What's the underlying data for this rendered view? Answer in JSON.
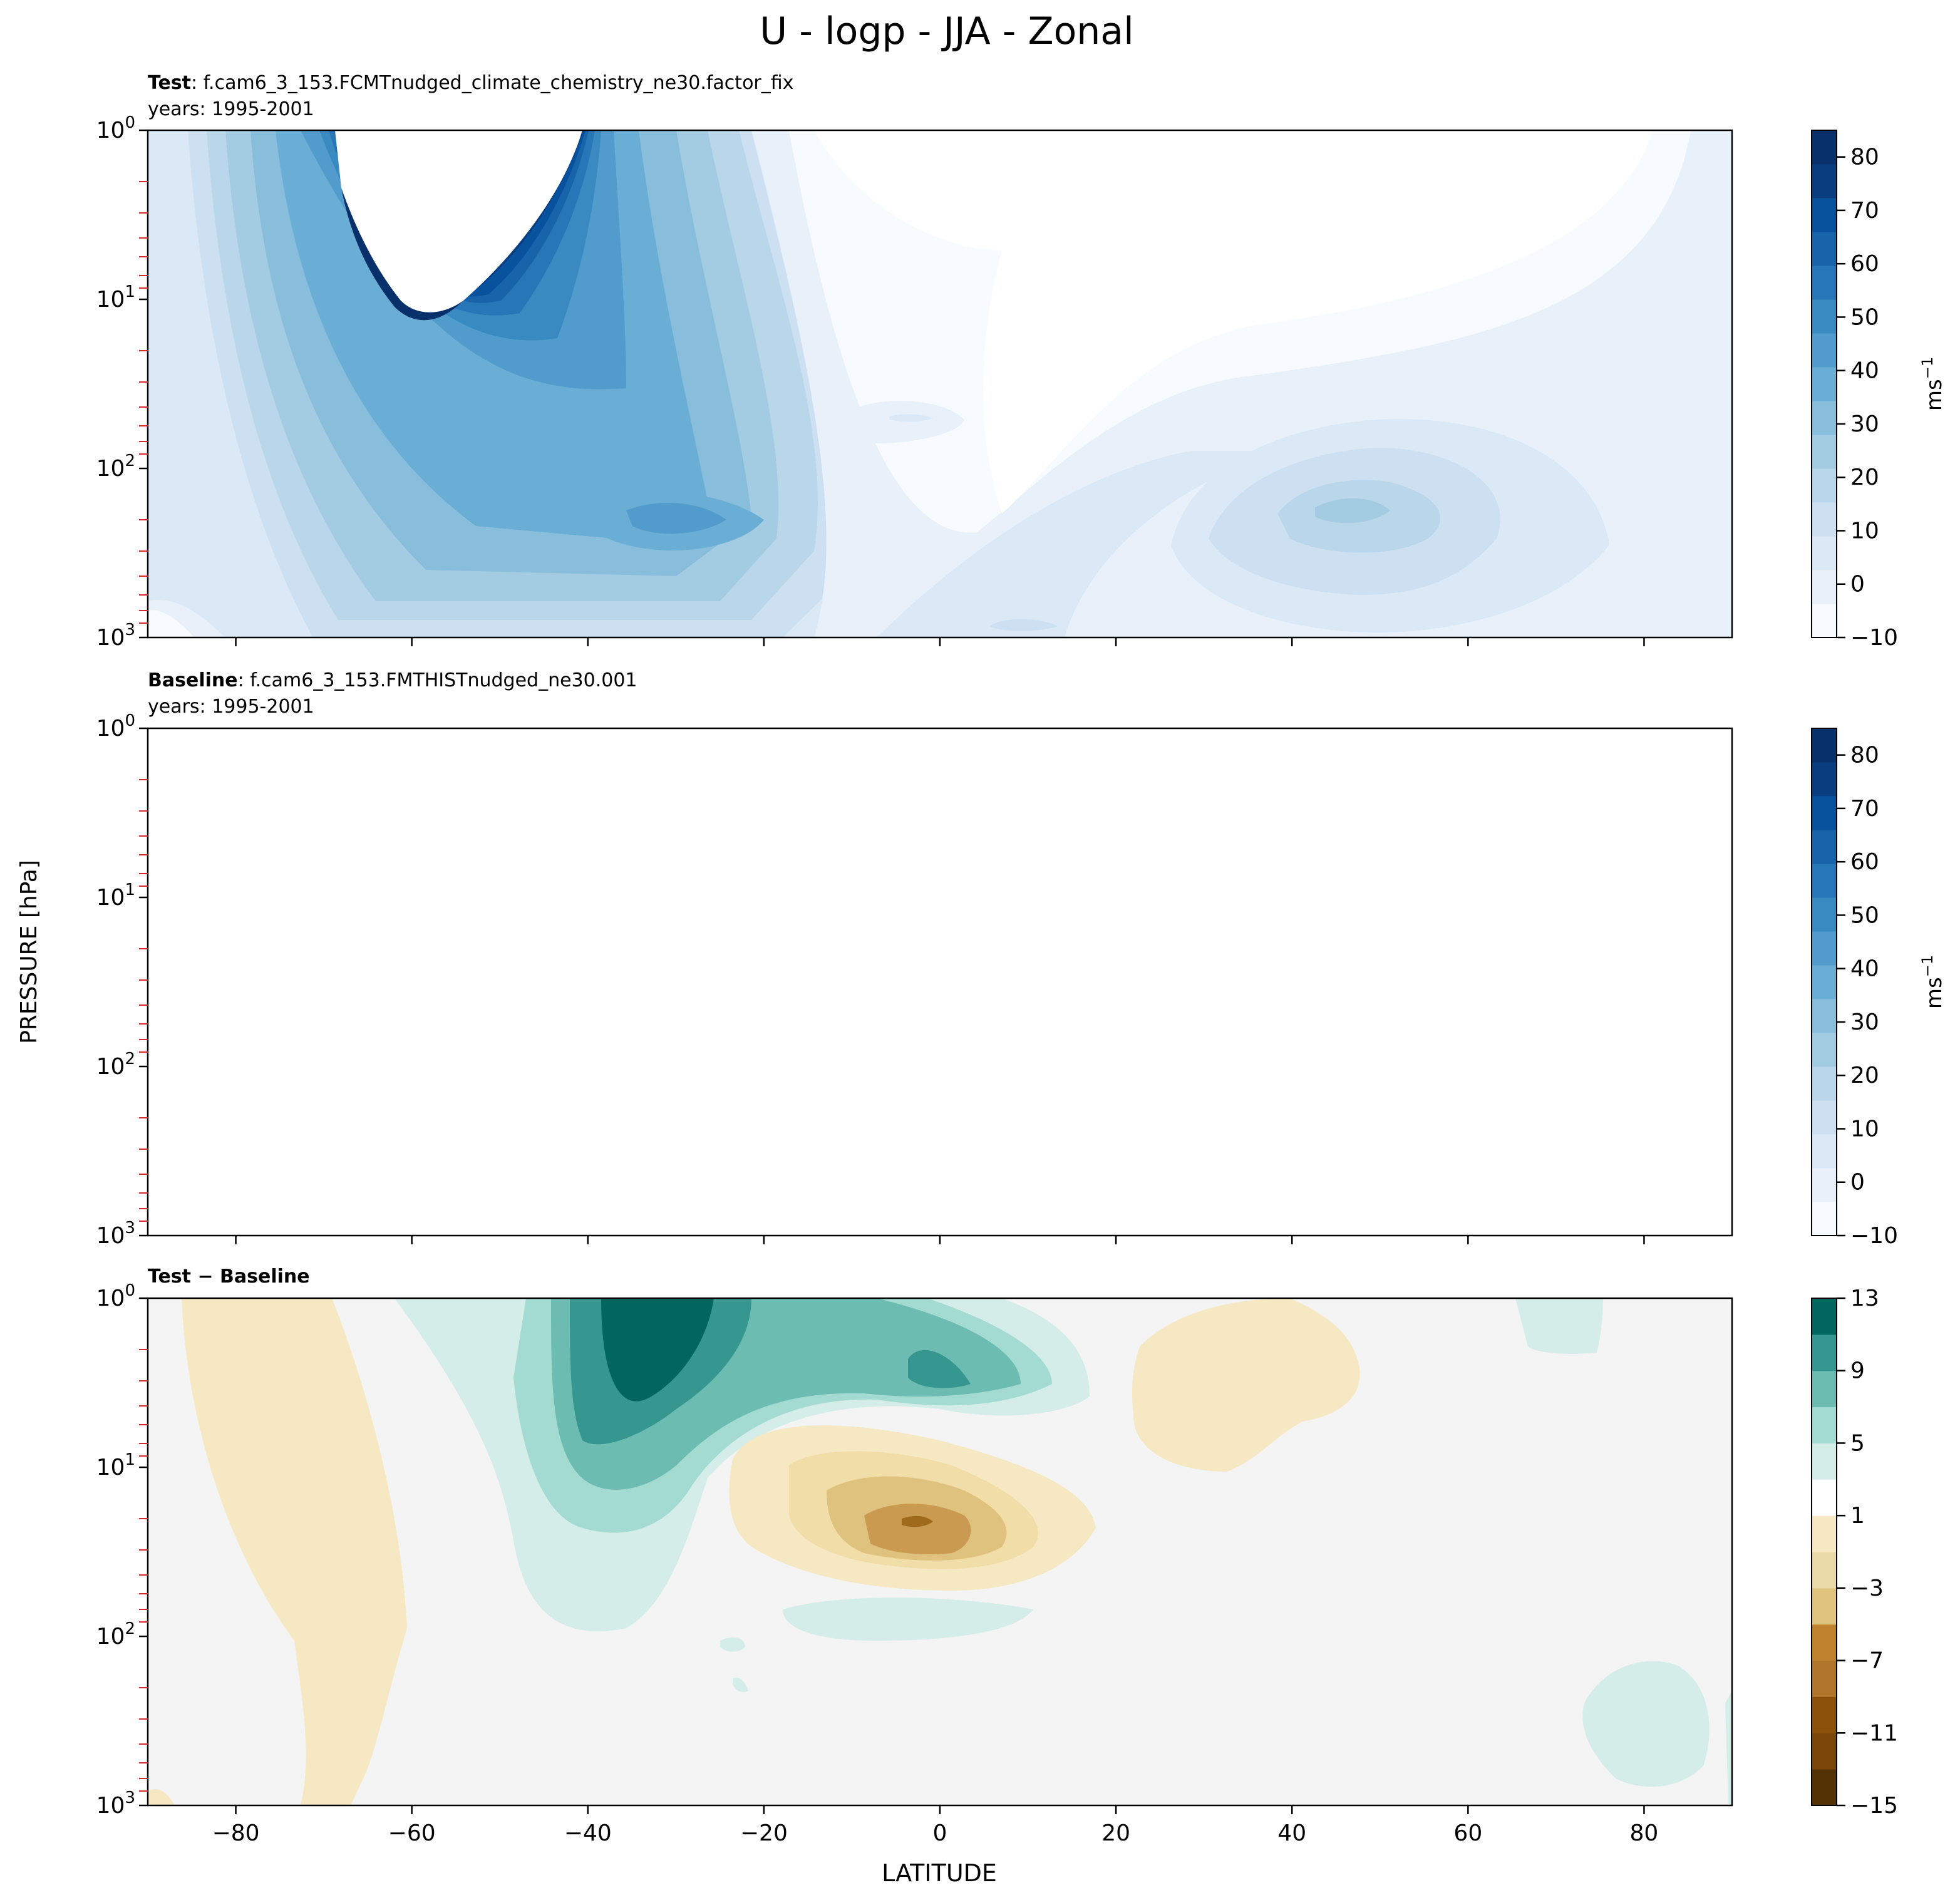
{
  "figure": {
    "title": "U - logp - JJA - Zonal",
    "ylabel": "PRESSURE [hPa]",
    "xlabel": "LATITUDE"
  },
  "colors": {
    "blues": [
      "#f7fbff",
      "#e8f1fa",
      "#dbe9f6",
      "#cde0f1",
      "#bad6eb",
      "#a3cce3",
      "#88bedc",
      "#6aaed6",
      "#519ccc",
      "#3a8ac2",
      "#2676b8",
      "#1764ab",
      "#08519c",
      "#083e80",
      "#08306b"
    ],
    "diff": [
      "#543005",
      "#8c510a",
      "#bf812d",
      "#dfc27d",
      "#f6e8c3",
      "#f5f5f5",
      "#c7eae5",
      "#80cdc1",
      "#35978f",
      "#01665e",
      "#003c30"
    ],
    "background_diff": "#f3f4f3",
    "minor_tick": "#d62728"
  },
  "chart_data": [
    {
      "type": "contourf",
      "id": "test",
      "label_bold": "Test",
      "label_rest": ": f.cam6_3_153.FCMTnudged_climate_chemistry_ne30.factor_fix",
      "years": "years: 1995-2001",
      "xlim": [
        -90,
        90
      ],
      "ylim_hpa": [
        1000,
        1
      ],
      "yscale": "log",
      "xticks": [
        -80,
        -60,
        -40,
        -20,
        0,
        20,
        40,
        60,
        80
      ],
      "yticks": [
        "10^3",
        "10^2",
        "10^1",
        "10^0"
      ],
      "colorbar": {
        "ticks": [
          "80",
          "70",
          "60",
          "50",
          "40",
          "30",
          "20",
          "10",
          "0",
          "−10"
        ],
        "tick_values": [
          80,
          70,
          60,
          50,
          40,
          30,
          20,
          10,
          0,
          -10
        ],
        "range": [
          -10,
          85
        ],
        "unit_base": "ms",
        "unit_exp": "−1"
      }
    },
    {
      "type": "contourf",
      "id": "baseline",
      "label_bold": "Baseline",
      "label_rest": ": f.cam6_3_153.FMTHISTnudged_ne30.001",
      "years": "years: 1995-2001",
      "xlim": [
        -90,
        90
      ],
      "ylim_hpa": [
        1000,
        1
      ],
      "yscale": "log",
      "xticks": [
        -80,
        -60,
        -40,
        -20,
        0,
        20,
        40,
        60,
        80
      ],
      "yticks": [
        "10^3",
        "10^2",
        "10^1",
        "10^0"
      ],
      "colorbar": {
        "ticks": [
          "80",
          "70",
          "60",
          "50",
          "40",
          "30",
          "20",
          "10",
          "0",
          "−10"
        ],
        "tick_values": [
          80,
          70,
          60,
          50,
          40,
          30,
          20,
          10,
          0,
          -10
        ],
        "range": [
          -10,
          85
        ],
        "unit_base": "ms",
        "unit_exp": "−1"
      }
    },
    {
      "type": "contourf",
      "id": "diff",
      "label_bold": "Test − Baseline",
      "xlim": [
        -90,
        90
      ],
      "ylim_hpa": [
        1000,
        1
      ],
      "yscale": "log",
      "xticks": [
        -80,
        -60,
        -40,
        -20,
        0,
        20,
        40,
        60,
        80
      ],
      "xtick_labels": [
        "−80",
        "−60",
        "−40",
        "−20",
        "0",
        "20",
        "40",
        "60",
        "80"
      ],
      "yticks": [
        "10^3",
        "10^2",
        "10^1",
        "10^0"
      ],
      "colorbar": {
        "ticks": [
          "13",
          "9",
          "5",
          "1",
          "−3",
          "−7",
          "−11",
          "−15"
        ],
        "tick_values": [
          13,
          9,
          5,
          1,
          -3,
          -7,
          -11,
          -15
        ],
        "range": [
          -15,
          13
        ]
      }
    }
  ]
}
